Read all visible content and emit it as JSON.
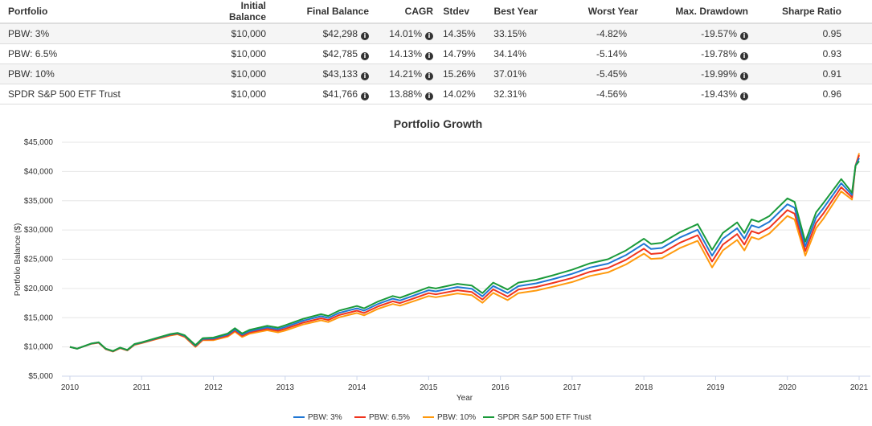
{
  "table": {
    "headers": [
      "Portfolio",
      "Initial Balance",
      "Final Balance",
      "CAGR",
      "Stdev",
      "Best Year",
      "Worst Year",
      "Max. Drawdown",
      "Sharpe Ratio"
    ],
    "rows": [
      {
        "portfolio": "PBW: 3%",
        "initial": "$10,000",
        "final": "$42,298",
        "cagr": "14.01%",
        "stdev": "14.35%",
        "best": "33.15%",
        "worst": "-4.82%",
        "maxdd": "-19.57%",
        "sharpe": "0.95"
      },
      {
        "portfolio": "PBW: 6.5%",
        "initial": "$10,000",
        "final": "$42,785",
        "cagr": "14.13%",
        "stdev": "14.79%",
        "best": "34.14%",
        "worst": "-5.14%",
        "maxdd": "-19.78%",
        "sharpe": "0.93"
      },
      {
        "portfolio": "PBW: 10%",
        "initial": "$10,000",
        "final": "$43,133",
        "cagr": "14.21%",
        "stdev": "15.26%",
        "best": "37.01%",
        "worst": "-5.45%",
        "maxdd": "-19.99%",
        "sharpe": "0.91"
      },
      {
        "portfolio": "SPDR S&P 500 ETF Trust",
        "initial": "$10,000",
        "final": "$41,766",
        "cagr": "13.88%",
        "stdev": "14.02%",
        "best": "32.31%",
        "worst": "-4.56%",
        "maxdd": "-19.43%",
        "sharpe": "0.96"
      }
    ],
    "info_icon": "info-circle-icon"
  },
  "chart_data": {
    "type": "line",
    "title": "Portfolio Growth",
    "xlabel": "Year",
    "ylabel": "Portfolio Balance ($)",
    "xlim": [
      2010,
      2021
    ],
    "ylim": [
      5000,
      45000
    ],
    "xticks": [
      "2010",
      "2011",
      "2012",
      "2013",
      "2014",
      "2015",
      "2016",
      "2017",
      "2018",
      "2019",
      "2020",
      "2021"
    ],
    "yticks": [
      "$5,000",
      "$10,000",
      "$15,000",
      "$20,000",
      "$25,000",
      "$30,000",
      "$35,000",
      "$40,000",
      "$45,000"
    ],
    "grid": true,
    "legend": "bottom",
    "x": [
      2010.0,
      2010.1,
      2010.3,
      2010.4,
      2010.5,
      2010.6,
      2010.7,
      2010.8,
      2010.9,
      2011.0,
      2011.2,
      2011.4,
      2011.5,
      2011.6,
      2011.75,
      2011.85,
      2012.0,
      2012.2,
      2012.3,
      2012.4,
      2012.5,
      2012.75,
      2012.9,
      2013.0,
      2013.25,
      2013.5,
      2013.6,
      2013.75,
      2014.0,
      2014.1,
      2014.3,
      2014.5,
      2014.6,
      2014.8,
      2015.0,
      2015.1,
      2015.4,
      2015.6,
      2015.75,
      2015.9,
      2016.1,
      2016.25,
      2016.5,
      2016.75,
      2017.0,
      2017.25,
      2017.5,
      2017.75,
      2018.0,
      2018.1,
      2018.25,
      2018.5,
      2018.75,
      2018.95,
      2019.1,
      2019.3,
      2019.4,
      2019.5,
      2019.6,
      2019.75,
      2020.0,
      2020.1,
      2020.25,
      2020.4,
      2020.5,
      2020.75,
      2020.9,
      2020.95,
      2021.0
    ],
    "series": [
      {
        "name": "PBW: 3%",
        "color": "#1f77d4",
        "values": [
          10000,
          9700,
          10580,
          10770,
          9670,
          9270,
          9860,
          9460,
          10450,
          10750,
          11440,
          12120,
          12320,
          11900,
          10200,
          11380,
          11450,
          12120,
          13000,
          12100,
          12680,
          13350,
          13030,
          13400,
          14480,
          15250,
          14950,
          15820,
          16600,
          16200,
          17380,
          18250,
          17950,
          18820,
          19700,
          19500,
          20250,
          19950,
          18650,
          20420,
          19200,
          20400,
          20880,
          21650,
          22500,
          23580,
          24250,
          25700,
          27650,
          26750,
          26920,
          28700,
          30050,
          25600,
          28500,
          30300,
          28500,
          30800,
          30400,
          31400,
          34400,
          33800,
          27200,
          32100,
          33700,
          38000,
          36000,
          41000,
          42298
        ]
      },
      {
        "name": "PBW: 6.5%",
        "color": "#f0341e",
        "values": [
          10000,
          9700,
          10560,
          10740,
          9640,
          9240,
          9820,
          9420,
          10400,
          10700,
          11380,
          12040,
          12240,
          11800,
          10100,
          11260,
          11300,
          11940,
          12800,
          11900,
          12460,
          13100,
          12760,
          13100,
          14160,
          14900,
          14600,
          15440,
          16200,
          15800,
          16960,
          17800,
          17500,
          18340,
          19200,
          19000,
          19700,
          19400,
          18100,
          19840,
          18600,
          19800,
          20260,
          21000,
          21800,
          22860,
          23500,
          24900,
          26800,
          25900,
          26040,
          27800,
          29100,
          24600,
          27500,
          29300,
          27500,
          29800,
          29400,
          30400,
          33400,
          32800,
          26400,
          31200,
          32800,
          37300,
          35600,
          41000,
          42785
        ]
      },
      {
        "name": "PBW: 10%",
        "color": "#ff9a0e",
        "values": [
          10000,
          9700,
          10540,
          10710,
          9610,
          9210,
          9780,
          9380,
          10350,
          10650,
          11320,
          11960,
          12160,
          11700,
          10000,
          11140,
          11150,
          11760,
          12600,
          11700,
          12240,
          12850,
          12490,
          12800,
          13840,
          14550,
          14250,
          15060,
          15800,
          15400,
          16540,
          17350,
          17050,
          17860,
          18700,
          18500,
          19150,
          18850,
          17550,
          19260,
          18000,
          19200,
          19640,
          20350,
          21100,
          22140,
          22750,
          24100,
          25950,
          25050,
          25160,
          26900,
          28150,
          23600,
          26500,
          28300,
          26500,
          28800,
          28400,
          29400,
          32400,
          31800,
          25600,
          30300,
          31900,
          36600,
          35200,
          41000,
          43133
        ]
      },
      {
        "name": "SPDR S&P 500 ETF Trust",
        "color": "#1a9a3a",
        "values": [
          10000,
          9700,
          10600,
          10800,
          9700,
          9300,
          9900,
          9500,
          10500,
          10800,
          11500,
          12200,
          12400,
          12000,
          10300,
          11500,
          11600,
          12300,
          13200,
          12300,
          12900,
          13600,
          13300,
          13700,
          14800,
          15600,
          15300,
          16200,
          17000,
          16600,
          17800,
          18700,
          18400,
          19300,
          20200,
          20000,
          20800,
          20500,
          19200,
          21000,
          19800,
          21000,
          21500,
          22300,
          23200,
          24300,
          25000,
          26500,
          28500,
          27600,
          27800,
          29600,
          31000,
          26600,
          29500,
          31300,
          29500,
          31800,
          31400,
          32400,
          35400,
          34800,
          28000,
          33000,
          34600,
          38700,
          36400,
          41000,
          41766
        ]
      }
    ]
  }
}
